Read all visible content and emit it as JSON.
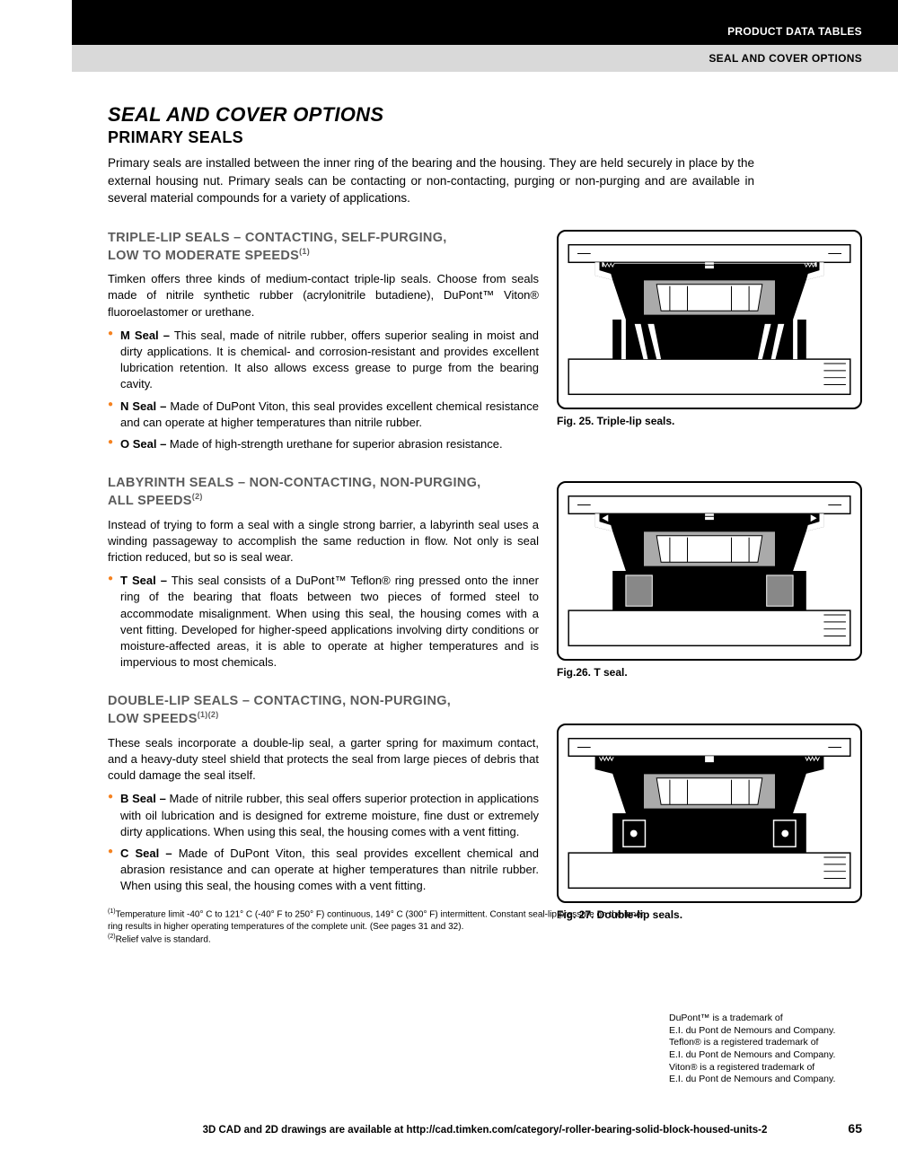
{
  "header": {
    "black_bar": "PRODUCT DATA TABLES",
    "gray_bar": "SEAL AND COVER OPTIONS"
  },
  "title": "SEAL AND COVER OPTIONS",
  "subtitle": "PRIMARY SEALS",
  "intro": "Primary seals are installed between the inner ring of the bearing and the housing. They are held securely in place by the external housing nut. Primary seals can be contacting or non-contacting, purging or non-purging and are available in several material compounds for a variety of applications.",
  "sections": [
    {
      "heading_line1": "TRIPLE-LIP SEALS – CONTACTING, SELF-PURGING,",
      "heading_line2": "LOW TO MODERATE SPEEDS",
      "heading_sup": "(1)",
      "para": "Timken offers three kinds of medium-contact triple-lip seals. Choose from seals made of nitrile synthetic rubber (acrylonitrile butadiene), DuPont™ Viton® fluoroelastomer or urethane.",
      "bullets": [
        {
          "bold": "M Seal –",
          "text": " This seal, made of nitrile rubber, offers superior sealing in moist and dirty applications. It is chemical- and corrosion-resistant and provides excellent lubrication retention. It also allows excess grease to purge from the bearing cavity."
        },
        {
          "bold": "N Seal –",
          "text": " Made of DuPont Viton, this seal provides excellent chemical resistance and can operate at higher temperatures than nitrile rubber."
        },
        {
          "bold": "O Seal –",
          "text": " Made of high-strength urethane for superior abrasion resistance."
        }
      ],
      "fig_caption": "Fig. 25. Triple-lip seals."
    },
    {
      "heading_line1": "LABYRINTH SEALS – NON-CONTACTING, NON-PURGING,",
      "heading_line2": "ALL SPEEDS",
      "heading_sup": "(2)",
      "para": "Instead of trying to form a seal with a single strong barrier, a labyrinth seal uses a winding passageway to accomplish the same reduction in flow. Not only is seal friction reduced, but so is seal wear.",
      "bullets": [
        {
          "bold": "T Seal –",
          "text": " This seal consists of a DuPont™ Teflon® ring pressed onto the inner ring of the bearing that floats between two pieces of formed steel to accommodate misalignment. When using this seal, the housing comes with a vent fitting. Developed for higher-speed applications involving dirty conditions or moisture-affected areas, it is able to operate at higher temperatures and is impervious to most chemicals."
        }
      ],
      "fig_caption": "Fig.26. T seal."
    },
    {
      "heading_line1": "DOUBLE-LIP SEALS – CONTACTING, NON-PURGING,",
      "heading_line2": "LOW SPEEDS",
      "heading_sup": "(1)(2)",
      "para": "These seals incorporate a double-lip seal, a garter spring for maximum contact, and a heavy-duty steel shield that protects the seal from large pieces of debris that could damage the seal itself.",
      "bullets": [
        {
          "bold": "B Seal –",
          "text": " Made of nitrile rubber, this seal offers superior protection in applications with oil lubrication and is designed for extreme moisture, fine dust or extremely dirty applications. When using this seal, the housing comes with a vent fitting."
        },
        {
          "bold": "C Seal –",
          "text": " Made of DuPont Viton, this seal provides excellent chemical and abrasion resistance and can operate at higher temperatures than nitrile rubber. When using this seal, the housing comes with a vent fitting."
        }
      ],
      "fig_caption": "Fig. 27. Double-lip seals."
    }
  ],
  "footnotes": {
    "f1": "Temperature limit -40° C to 121° C (-40° F to 250° F) continuous, 149° C (300° F) intermittent. Constant seal-lip pressure on the inner ring results in higher operating temperatures of the complete unit. (See pages 31 and 32).",
    "f2": "Relief valve is standard."
  },
  "trademark": "DuPont™ is a trademark of\nE.I. du Pont de Nemours and Company.\nTeflon® is a registered trademark of\nE.I. du Pont de Nemours and Company.\nViton® is a registered trademark of\nE.I. du Pont de Nemours and Company.",
  "footer": "3D CAD and 2D drawings are available at http://cad.timken.com/category/-roller-bearing-solid-block-housed-units-2",
  "page_num": "65"
}
